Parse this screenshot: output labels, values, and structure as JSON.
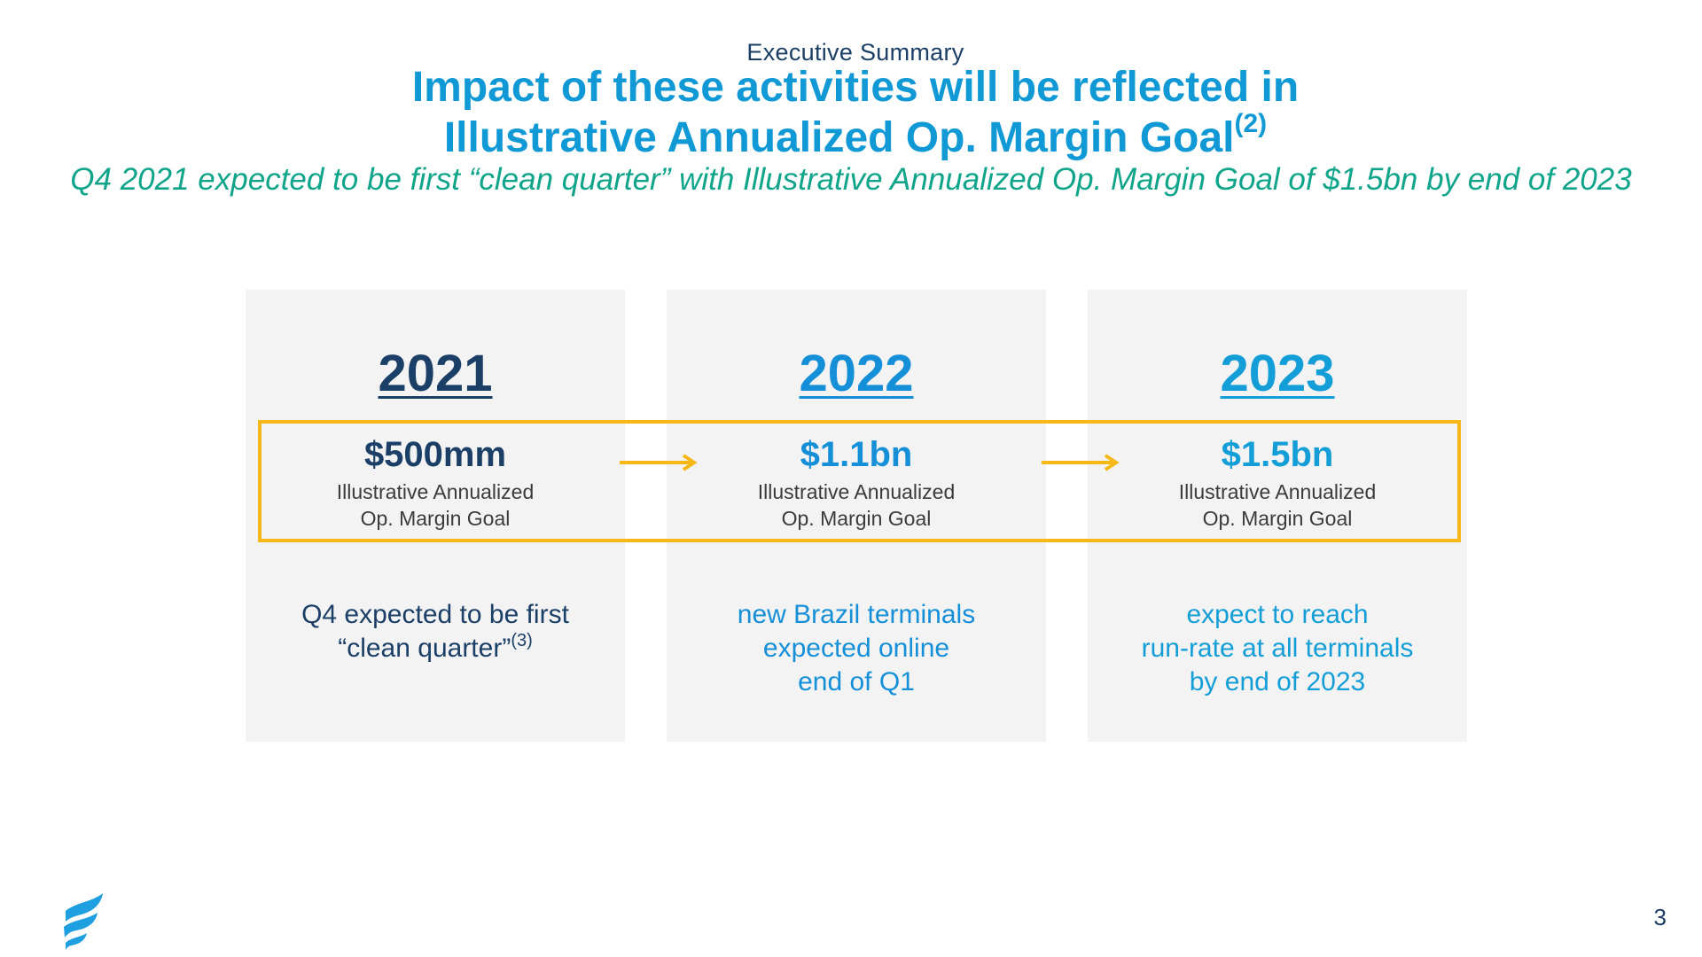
{
  "header": {
    "section": "Executive Summary",
    "title_line1": "Impact of these activities will be reflected in",
    "title_line2": "Illustrative Annualized Op. Margin Goal",
    "title_footnote": "(2)",
    "subtitle": "Q4 2021 expected to be first “clean quarter” with Illustrative Annualized Op. Margin Goal of $1.5bn by end of 2023"
  },
  "columns": [
    {
      "year": "2021",
      "amount": "$500mm",
      "goal_line1": "Illustrative Annualized",
      "goal_line2": "Op. Margin Goal",
      "note_line1": "Q4 expected to be first",
      "note_line2": "“clean quarter”",
      "note_footnote": "(3)",
      "color": "#1b3f66"
    },
    {
      "year": "2022",
      "amount": "$1.1bn",
      "goal_line1": "Illustrative Annualized",
      "goal_line2": "Op. Margin Goal",
      "note_line1": "new Brazil terminals",
      "note_line2": "expected online",
      "note_line3": "end of Q1",
      "color": "#1590d8"
    },
    {
      "year": "2023",
      "amount": "$1.5bn",
      "goal_line1": "Illustrative Annualized",
      "goal_line2": "Op. Margin Goal",
      "note_line1": "expect to reach",
      "note_line2": "run-rate at all terminals",
      "note_line3": "by end of 2023",
      "color": "#149ed8"
    }
  ],
  "highlight_color": "#f6b818",
  "arrow_icon": "right-arrow-icon",
  "logo_icon": "flame-logo-icon",
  "footer": {
    "page_number": "3"
  }
}
